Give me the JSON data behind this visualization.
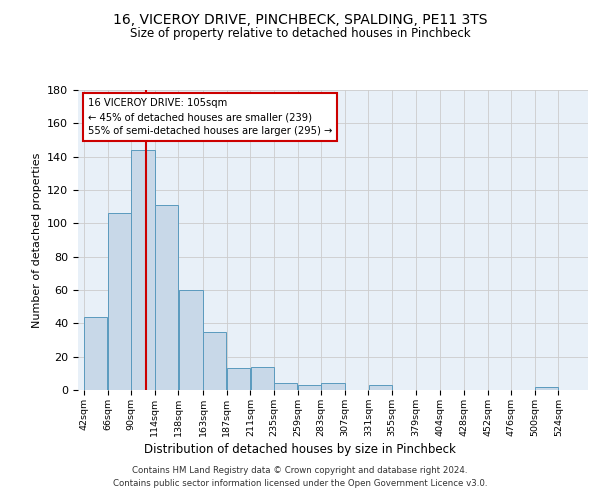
{
  "title": "16, VICEROY DRIVE, PINCHBECK, SPALDING, PE11 3TS",
  "subtitle": "Size of property relative to detached houses in Pinchbeck",
  "xlabel": "Distribution of detached houses by size in Pinchbeck",
  "ylabel": "Number of detached properties",
  "bin_labels": [
    "42sqm",
    "66sqm",
    "90sqm",
    "114sqm",
    "138sqm",
    "163sqm",
    "187sqm",
    "211sqm",
    "235sqm",
    "259sqm",
    "283sqm",
    "307sqm",
    "331sqm",
    "355sqm",
    "379sqm",
    "404sqm",
    "428sqm",
    "452sqm",
    "476sqm",
    "500sqm",
    "524sqm"
  ],
  "bar_heights": [
    44,
    106,
    144,
    111,
    60,
    35,
    13,
    14,
    4,
    3,
    4,
    0,
    3,
    0,
    0,
    0,
    0,
    0,
    0,
    2,
    0
  ],
  "bar_color": "#c8d8e8",
  "bar_edge_color": "#5a9abe",
  "vline_x": 105,
  "vline_color": "#cc0000",
  "annotation_text": "16 VICEROY DRIVE: 105sqm\n← 45% of detached houses are smaller (239)\n55% of semi-detached houses are larger (295) →",
  "annotation_box_color": "#ffffff",
  "annotation_box_edge": "#cc0000",
  "ylim": [
    0,
    180
  ],
  "yticks": [
    0,
    20,
    40,
    60,
    80,
    100,
    120,
    140,
    160,
    180
  ],
  "grid_color": "#cccccc",
  "bg_color": "#e8f0f8",
  "footer": "Contains HM Land Registry data © Crown copyright and database right 2024.\nContains public sector information licensed under the Open Government Licence v3.0.",
  "bin_edges": [
    42,
    66,
    90,
    114,
    138,
    163,
    187,
    211,
    235,
    259,
    283,
    307,
    331,
    355,
    379,
    404,
    428,
    452,
    476,
    500,
    524,
    548
  ]
}
